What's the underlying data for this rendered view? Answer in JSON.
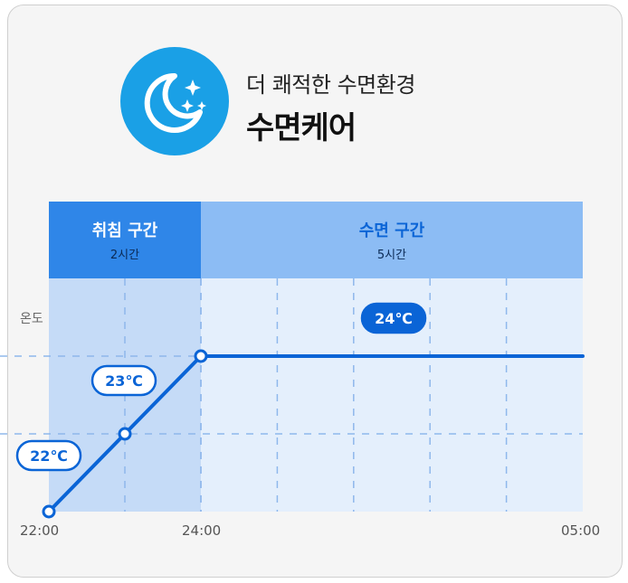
{
  "header": {
    "subtitle": "더 쾌적한 수면환경",
    "title": "수면케어",
    "icon": "moon-stars-icon"
  },
  "colors": {
    "accent": "#0a64d6",
    "icon_bg": "#1aa0e6",
    "bedtime_band": "#2f86e8",
    "sleep_band": "#8cbcf4",
    "bedtime_area": "#c5dbf7",
    "sleep_area": "#e4effc",
    "card_bg": "#f5f5f5"
  },
  "chart_data": {
    "type": "line",
    "ylabel": "온도",
    "x_ticks": [
      "22:00",
      "24:00",
      "05:00"
    ],
    "bands": [
      {
        "name": "취침 구간",
        "duration": "2시간"
      },
      {
        "name": "수면 구간",
        "duration": "5시간"
      }
    ],
    "series": [
      {
        "points": [
          {
            "x": "22:00",
            "y": 22
          },
          {
            "x": "23:00",
            "y": 23
          },
          {
            "x": "24:00",
            "y": 24
          },
          {
            "x": "05:00",
            "y": 24
          }
        ]
      }
    ],
    "data_labels": [
      "22℃",
      "23℃",
      "24℃"
    ],
    "grid": true
  }
}
